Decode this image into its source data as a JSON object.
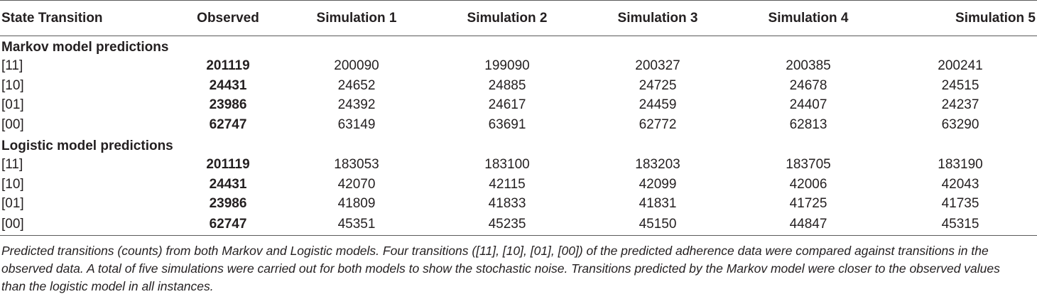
{
  "table": {
    "headers": [
      "State Transition",
      "Observed",
      "Simulation 1",
      "Simulation 2",
      "Simulation 3",
      "Simulation 4",
      "Simulation 5"
    ],
    "sections": [
      {
        "title": "Markov model predictions",
        "rows": [
          {
            "label": "[11]",
            "observed": "201119",
            "sims": [
              "200090",
              "199090",
              "200327",
              "200385",
              "200241"
            ]
          },
          {
            "label": "[10]",
            "observed": "24431",
            "sims": [
              "24652",
              "24885",
              "24725",
              "24678",
              "24515"
            ]
          },
          {
            "label": "[01]",
            "observed": "23986",
            "sims": [
              "24392",
              "24617",
              "24459",
              "24407",
              "24237"
            ]
          },
          {
            "label": "[00]",
            "observed": "62747",
            "sims": [
              "63149",
              "63691",
              "62772",
              "62813",
              "63290"
            ]
          }
        ]
      },
      {
        "title": "Logistic model predictions",
        "rows": [
          {
            "label": "[11]",
            "observed": "201119",
            "sims": [
              "183053",
              "183100",
              "183203",
              "183705",
              "183190"
            ]
          },
          {
            "label": "[10]",
            "observed": "24431",
            "sims": [
              "42070",
              "42115",
              "42099",
              "42006",
              "42043"
            ]
          },
          {
            "label": "[01]",
            "observed": "23986",
            "sims": [
              "41809",
              "41833",
              "41831",
              "41725",
              "41735"
            ]
          },
          {
            "label": "[00]",
            "observed": "62747",
            "sims": [
              "45351",
              "45235",
              "45150",
              "44847",
              "45315"
            ]
          }
        ]
      }
    ]
  },
  "caption": "Predicted transitions (counts) from both Markov and Logistic models. Four transitions ([11], [10], [01], [00]) of the predicted adherence data were compared against transitions in the observed data. A total of five simulations were carried out for both models to show the stochastic noise. Transitions predicted by the Markov model were closer to the observed values than the logistic model in all instances."
}
